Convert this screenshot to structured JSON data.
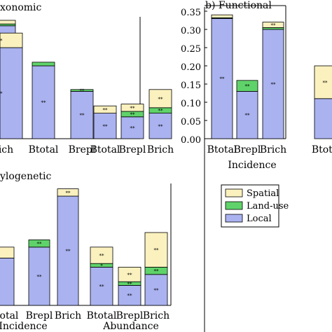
{
  "colors": {
    "local": "#aab2f0",
    "landuse": "#5fd36a",
    "spatial": "#fbf1be",
    "stroke": "#000000"
  },
  "legend": {
    "placement": "center-right",
    "items": [
      "Spatial",
      "Land-use",
      "Local"
    ]
  },
  "chart_data": [
    {
      "id": "taxonomic",
      "type": "bar",
      "stacked": true,
      "title": "xonomic",
      "ylim": [
        0,
        0.35
      ],
      "groups": [
        {
          "label": "",
          "categories": [
            "",
            "Btotal",
            "Brepl",
            "Brich"
          ],
          "stacks": [
            [
              0.31,
              0.005,
              0.01
            ],
            [
              0.2,
              0.01,
              0.0
            ],
            [
              0.13,
              0.005,
              0.0
            ],
            [
              0.25,
              0.0,
              0.04
            ]
          ],
          "signif": [
            [
              "**",
              "",
              ""
            ],
            [
              "**",
              "",
              ""
            ],
            [
              "**",
              "**",
              ""
            ],
            [
              "**",
              "",
              "**"
            ]
          ]
        },
        {
          "label": "",
          "categories": [
            "Btotal",
            "Brepl",
            "Brich"
          ],
          "stacks": [
            [
              0.07,
              0.0,
              0.02
            ],
            [
              0.06,
              0.015,
              0.02
            ],
            [
              0.07,
              0.015,
              0.05
            ]
          ],
          "signif": [
            [
              "**",
              "",
              "**"
            ],
            [
              "**",
              "**",
              "**"
            ],
            [
              "**",
              "**",
              "**"
            ]
          ]
        }
      ]
    },
    {
      "id": "functional",
      "type": "bar",
      "stacked": true,
      "title": "b) Functional",
      "xlabel": "Incidence",
      "yticks": [
        "0.00",
        "0.05",
        "0.10",
        "0.15",
        "0.20",
        "0.25",
        "0.30",
        "0.35"
      ],
      "ylim": [
        0,
        0.35
      ],
      "groups": [
        {
          "label": "Incidence",
          "categories": [
            "Btotal",
            "Brepl",
            "Brich"
          ],
          "stacks": [
            [
              0.33,
              0.002,
              0.008
            ],
            [
              0.13,
              0.03,
              0.0
            ],
            [
              0.3,
              0.005,
              0.015
            ]
          ],
          "signif": [
            [
              "**",
              "",
              ""
            ],
            [
              "**",
              "**",
              ""
            ],
            [
              "**",
              "",
              "**"
            ]
          ]
        },
        {
          "label": "",
          "categories": [
            "Btota"
          ],
          "stacks": [
            [
              0.11,
              0.0,
              0.09
            ]
          ],
          "signif": [
            [
              "",
              "",
              "**"
            ]
          ]
        }
      ]
    },
    {
      "id": "phylogenetic",
      "type": "bar",
      "stacked": true,
      "title": "ylogenetic",
      "ylim": [
        0,
        0.35
      ],
      "groups": [
        {
          "label": "Incidence",
          "categories": [
            "",
            "Btotal",
            "Brepl",
            "Brich"
          ],
          "stacks": [
            [
              0.11,
              0.0,
              0.03
            ],
            [
              0.13,
              0.0,
              0.03
            ],
            [
              0.16,
              0.02,
              0.0
            ],
            [
              0.3,
              0.0,
              0.02
            ]
          ],
          "signif": [
            [
              "",
              "",
              ""
            ],
            [
              "",
              "",
              ""
            ],
            [
              "**",
              "**",
              ""
            ],
            [
              "**",
              "",
              "**"
            ]
          ]
        },
        {
          "label": "Abundance",
          "categories": [
            "Btotal",
            "Brepl",
            "Brich"
          ],
          "stacks": [
            [
              0.105,
              0.01,
              0.045
            ],
            [
              0.055,
              0.01,
              0.04
            ],
            [
              0.085,
              0.02,
              0.095
            ]
          ],
          "signif": [
            [
              "**",
              "*",
              "**"
            ],
            [
              "**",
              "**",
              "**"
            ],
            [
              "**",
              "**",
              "**"
            ]
          ]
        }
      ]
    }
  ]
}
